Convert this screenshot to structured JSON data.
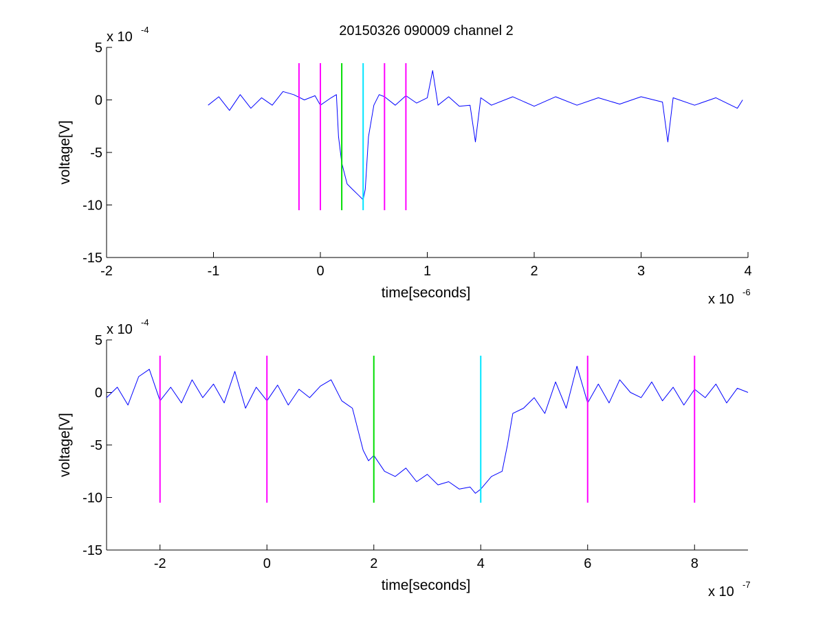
{
  "figure": {
    "title": "20150326 090009 channel 2",
    "colors": {
      "trace": "#0000ff",
      "start_marker": "#00dd00",
      "end_marker": "#00e5ff",
      "window_marker": "#ff00ff",
      "axes": "#000000",
      "background": "#ffffff"
    }
  },
  "chart_data": [
    {
      "type": "line",
      "title": "20150326 090009 channel 2",
      "xlabel": "time[seconds]",
      "ylabel": "voltage[V]",
      "x_multiplier_label": "x 10",
      "x_multiplier_exp": "-6",
      "y_multiplier_label": "x 10",
      "y_multiplier_exp": "-4",
      "xlim": [
        -2,
        4
      ],
      "ylim": [
        -15,
        5
      ],
      "xticks": [
        -2,
        -1,
        0,
        1,
        2,
        3,
        4
      ],
      "xtick_labels": [
        "-2",
        "-1",
        "0",
        "1",
        "2",
        "3",
        "4"
      ],
      "yticks": [
        5,
        0,
        -5,
        -10,
        -15
      ],
      "ytick_labels": [
        "5",
        "0",
        "-5",
        "-10",
        "-15"
      ],
      "grid": false,
      "series": [
        {
          "color": "#0000ff",
          "x": [
            -1.05,
            -0.95,
            -0.85,
            -0.75,
            -0.65,
            -0.55,
            -0.45,
            -0.35,
            -0.25,
            -0.15,
            -0.05,
            0.0,
            0.1,
            0.15,
            0.17,
            0.2,
            0.25,
            0.3,
            0.35,
            0.4,
            0.42,
            0.45,
            0.5,
            0.55,
            0.6,
            0.7,
            0.8,
            0.9,
            1.0,
            1.05,
            1.1,
            1.2,
            1.3,
            1.4,
            1.45,
            1.5,
            1.6,
            1.8,
            2.0,
            2.2,
            2.4,
            2.6,
            2.8,
            3.0,
            3.2,
            3.25,
            3.3,
            3.5,
            3.7,
            3.9,
            3.95
          ],
          "y": [
            -0.5,
            0.3,
            -1.0,
            0.5,
            -0.8,
            0.2,
            -0.5,
            0.8,
            0.5,
            0.0,
            0.4,
            -0.5,
            0.2,
            0.5,
            -3.5,
            -6.0,
            -8.0,
            -8.5,
            -9.0,
            -9.5,
            -8.5,
            -3.5,
            -0.5,
            0.5,
            0.3,
            -0.5,
            0.4,
            -0.3,
            0.2,
            2.8,
            -0.5,
            0.3,
            -0.6,
            -0.5,
            -4.0,
            0.2,
            -0.5,
            0.3,
            -0.6,
            0.3,
            -0.5,
            0.2,
            -0.4,
            0.3,
            -0.2,
            -4.0,
            0.2,
            -0.5,
            0.2,
            -0.8,
            0.0
          ]
        }
      ],
      "markers": [
        {
          "x": -0.2,
          "y_range": [
            -10.5,
            3.5
          ],
          "color": "#ff00ff"
        },
        {
          "x": 0.0,
          "y_range": [
            -10.5,
            3.5
          ],
          "color": "#ff00ff"
        },
        {
          "x": 0.2,
          "y_range": [
            -10.5,
            3.5
          ],
          "color": "#00dd00"
        },
        {
          "x": 0.4,
          "y_range": [
            -10.5,
            3.5
          ],
          "color": "#00e5ff"
        },
        {
          "x": 0.6,
          "y_range": [
            -10.5,
            3.5
          ],
          "color": "#ff00ff"
        },
        {
          "x": 0.8,
          "y_range": [
            -10.5,
            3.5
          ],
          "color": "#ff00ff"
        }
      ]
    },
    {
      "type": "line",
      "xlabel": "time[seconds]",
      "ylabel": "voltage[V]",
      "x_multiplier_label": "x 10",
      "x_multiplier_exp": "-7",
      "y_multiplier_label": "x 10",
      "y_multiplier_exp": "-4",
      "xlim": [
        -3,
        9
      ],
      "ylim": [
        -15,
        5
      ],
      "xticks": [
        -2,
        0,
        2,
        4,
        6,
        8
      ],
      "xtick_labels": [
        "-2",
        "0",
        "2",
        "4",
        "6",
        "8"
      ],
      "yticks": [
        5,
        0,
        -5,
        -10,
        -15
      ],
      "ytick_labels": [
        "5",
        "0",
        "-5",
        "-10",
        "-15"
      ],
      "grid": false,
      "series": [
        {
          "color": "#0000ff",
          "x": [
            -3.0,
            -2.8,
            -2.6,
            -2.4,
            -2.2,
            -2.0,
            -1.8,
            -1.6,
            -1.4,
            -1.2,
            -1.0,
            -0.8,
            -0.6,
            -0.4,
            -0.2,
            0.0,
            0.2,
            0.4,
            0.6,
            0.8,
            1.0,
            1.2,
            1.4,
            1.6,
            1.7,
            1.8,
            1.9,
            2.0,
            2.2,
            2.4,
            2.6,
            2.8,
            3.0,
            3.2,
            3.4,
            3.6,
            3.8,
            3.9,
            4.0,
            4.2,
            4.4,
            4.5,
            4.6,
            4.8,
            5.0,
            5.2,
            5.4,
            5.6,
            5.8,
            6.0,
            6.2,
            6.4,
            6.6,
            6.8,
            7.0,
            7.2,
            7.4,
            7.6,
            7.8,
            8.0,
            8.2,
            8.4,
            8.6,
            8.8,
            9.0
          ],
          "y": [
            -0.5,
            0.5,
            -1.2,
            1.5,
            2.2,
            -0.8,
            0.5,
            -1.0,
            1.2,
            -0.5,
            0.8,
            -1.0,
            2.0,
            -1.5,
            0.5,
            -0.8,
            0.7,
            -1.2,
            0.3,
            -0.5,
            0.6,
            1.2,
            -0.8,
            -1.5,
            -3.5,
            -5.5,
            -6.5,
            -6.0,
            -7.5,
            -8.0,
            -7.2,
            -8.5,
            -7.8,
            -8.8,
            -8.5,
            -9.2,
            -9.0,
            -9.6,
            -9.2,
            -8.0,
            -7.5,
            -5.0,
            -2.0,
            -1.5,
            -0.5,
            -2.0,
            1.0,
            -1.5,
            2.5,
            -1.0,
            0.8,
            -1.0,
            1.2,
            0.0,
            -0.5,
            1.0,
            -0.8,
            0.5,
            -1.2,
            0.3,
            -0.5,
            0.8,
            -1.0,
            0.4,
            0.0
          ]
        }
      ],
      "markers": [
        {
          "x": -2,
          "y_range": [
            -10.5,
            3.5
          ],
          "color": "#ff00ff"
        },
        {
          "x": 0,
          "y_range": [
            -10.5,
            3.5
          ],
          "color": "#ff00ff"
        },
        {
          "x": 2,
          "y_range": [
            -10.5,
            3.5
          ],
          "color": "#00dd00"
        },
        {
          "x": 4,
          "y_range": [
            -10.5,
            3.5
          ],
          "color": "#00e5ff"
        },
        {
          "x": 6,
          "y_range": [
            -10.5,
            3.5
          ],
          "color": "#ff00ff"
        },
        {
          "x": 8,
          "y_range": [
            -10.5,
            3.5
          ],
          "color": "#ff00ff"
        }
      ]
    }
  ]
}
